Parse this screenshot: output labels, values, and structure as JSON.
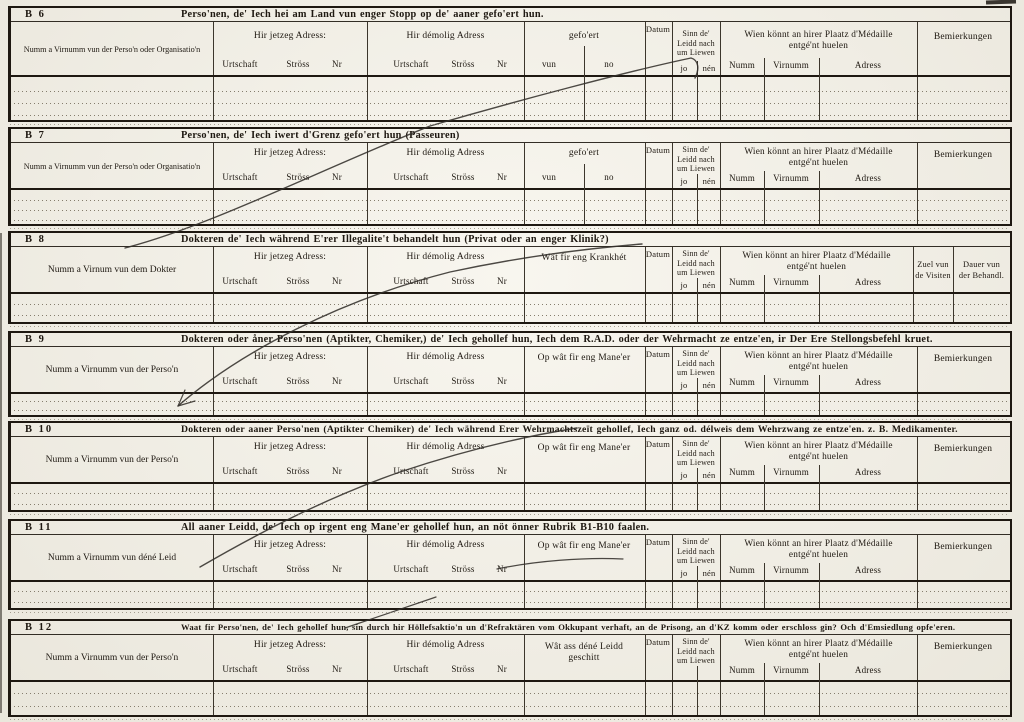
{
  "colors": {
    "paper": "#f5f2e8",
    "ink": "#1e1811",
    "line": "#3c362c",
    "dots": "#857d6d",
    "pen": "#33302b"
  },
  "shared": {
    "jetzeg_adress": "Hir jetzeg Adress:",
    "demolig_adress": "Hir démolig Adress",
    "urtschaft": "Urtschaft",
    "stross": "Ströss",
    "nr": "Nr",
    "datum": "Datum",
    "sinn_line1": "Sinn de'",
    "sinn_line2": "Leidd nach",
    "sinn_line3": "um Liewen",
    "jo": "jo",
    "nen": "nén",
    "wien_line1": "Wien könnt an hirer Plaatz d'Médaille",
    "wien_line2": "entgé'nt huelen",
    "numm": "Numm",
    "virnumm": "Virnumm",
    "adress": "Adress",
    "bemierkungen": "Bemierkungen"
  },
  "sections": [
    {
      "id": "B 6",
      "title": "Perso'nen, de' Iech hei am Land vun enger Stopp op de' aaner gefo'ert hun.",
      "name_col": "Numm a Virnumm vun der Perso'n oder Organisatio'n",
      "mid_label": "gefo'ert",
      "mid_subs": [
        "vun",
        "no"
      ]
    },
    {
      "id": "B 7",
      "title": "Perso'nen, de' Iech iwert d'Grenz gefo'ert hun (Passeuren)",
      "name_col": "Numm a Virnumm vun der Perso'n oder Organisatio'n",
      "mid_label": "gefo'ert",
      "mid_subs": [
        "vun",
        "no"
      ]
    },
    {
      "id": "B 8",
      "title": "Dokteren de' Iech während E'rer Illegalite't behandelt hun (Privat oder an enger Klinik?)",
      "name_col": "Numm a Virnum vun dem Dokter",
      "mid_label": "Wât fir eng Krankhét",
      "tail_cols": [
        {
          "line1": "Zuel vun",
          "line2": "de Visiten"
        },
        {
          "line1": "Dauer vun",
          "line2": "der Behandl."
        }
      ]
    },
    {
      "id": "B 9",
      "title": "Dokteren oder åner Perso'nen (Aptikter, Chemiker,) de' Iech gehollef hun, Iech dem R.A.D. oder der Wehrmacht ze entze'en, ir Der Ere Stellongsbefehl kruet.",
      "name_col": "Numm a Virnumm vun der Perso'n",
      "mid_label": "Op wât fir eng Mane'er"
    },
    {
      "id": "B 10",
      "title": "Dokteren oder aaner Perso'nen (Aptikter Chemiker) de' Iech während Erer Wehrmachtszeït gehollef, Iech ganz od. délweis dem Wehrzwang ze entze'en. z. B. Medikamenter.",
      "name_col": "Numm a Virnumm vun der Perso'n",
      "mid_label": "Op wât fir eng Mane'er"
    },
    {
      "id": "B 11",
      "title": "All aaner Leidd, de' Iech op irgent eng Mane'er gehollef hun, an nöt önner Rubrik B1-B10 faalen.",
      "name_col": "Numm a Virnumm vun déné Leid",
      "mid_label": "Op wât fir eng Mane'er"
    },
    {
      "id": "B 12",
      "title": "Waat fir Perso'nen, de' Iech gehollef hun, sin durch hir Höllefsaktio'n un d'Refraktären vom Okkupant verhaft, an de Prisong, an d'KZ komm oder erschloss gin? Och d'Emsiedlung opfe'eren.",
      "name_col": "Numm a Virnumm vun der Perso'n",
      "mid_lines": [
        "Wât ass déné Leidd",
        "geschitt"
      ],
      "no_jo_nen": true
    }
  ]
}
